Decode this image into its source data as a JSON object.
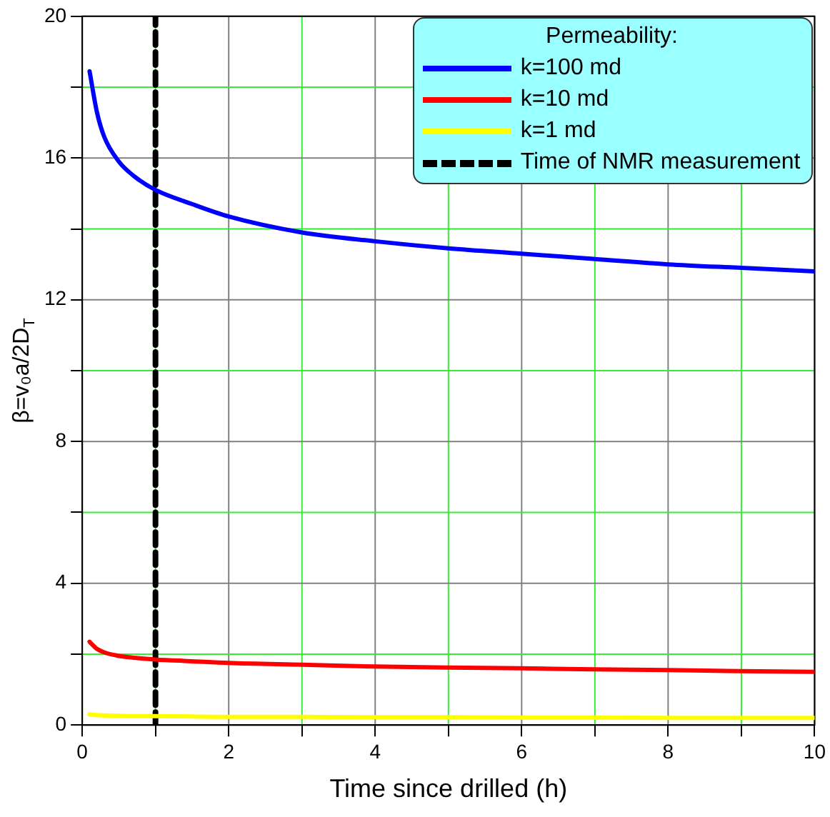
{
  "chart_data": {
    "type": "line",
    "xlabel": "Time since drilled (h)",
    "ylabel": "β=v₀a/2D$_{T}$",
    "legend_title": "Permeability:",
    "legend": "top right",
    "grid": true,
    "xlim": [
      0,
      10
    ],
    "xticks": [
      0,
      {
        "value": 1,
        "label": null
      },
      2,
      {
        "value": 3,
        "label": null
      },
      4,
      {
        "value": 5,
        "label": null
      },
      6,
      {
        "value": 7,
        "label": null
      },
      8,
      {
        "value": 9,
        "label": null
      },
      10
    ],
    "ylim": [
      0,
      20
    ],
    "yticks": [
      0,
      {
        "value": 2,
        "label": null
      },
      4,
      {
        "value": 6,
        "label": null
      },
      8,
      {
        "value": 10,
        "label": null
      },
      12,
      {
        "value": 14,
        "label": null
      },
      16,
      {
        "value": 18,
        "label": null
      },
      20
    ],
    "x": [
      0.1,
      0.2,
      0.3,
      0.5,
      0.7,
      1,
      1.5,
      2,
      3,
      4,
      5,
      6,
      7,
      8,
      9,
      10
    ],
    "series": [
      {
        "name": "k=100 md",
        "color": "#0000ff",
        "values": [
          18.45,
          17.3,
          16.6,
          15.9,
          15.5,
          15.1,
          14.7,
          14.35,
          13.9,
          13.65,
          13.45,
          13.3,
          13.15,
          13.0,
          12.9,
          12.8
        ]
      },
      {
        "name": "k=10 md",
        "color": "#ff0000",
        "values": [
          2.35,
          2.15,
          2.05,
          1.95,
          1.9,
          1.85,
          1.8,
          1.75,
          1.7,
          1.65,
          1.62,
          1.6,
          1.57,
          1.55,
          1.52,
          1.5
        ]
      },
      {
        "name": "k=1 md",
        "color": "#ffff00",
        "values": [
          0.3,
          0.28,
          0.27,
          0.26,
          0.25,
          0.25,
          0.24,
          0.23,
          0.23,
          0.22,
          0.22,
          0.21,
          0.21,
          0.2,
          0.2,
          0.2
        ]
      },
      {
        "name": "Time of NMR measurement",
        "color": "#000000",
        "x": [
          1,
          1
        ],
        "values": [
          0,
          20
        ],
        "line_style": "dashed"
      }
    ]
  }
}
